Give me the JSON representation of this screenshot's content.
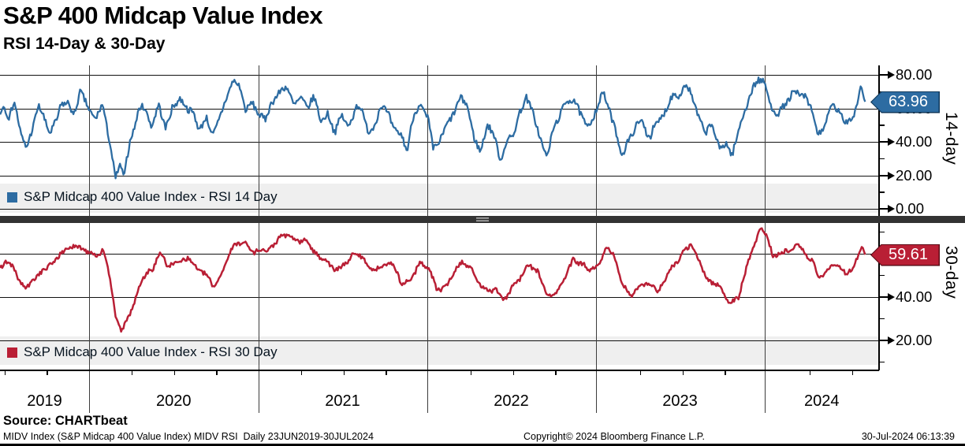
{
  "header": {
    "title": "S&P 400 Midcap Value Index",
    "subtitle": "RSI 14-Day & 30-Day"
  },
  "footer": {
    "source": "Source: CHARTbeat",
    "description": "MIDV Index (S&P Midcap 400 Value Index) MIDV RSI  Daily 23JUN2019-30JUL2024",
    "copyright": "Copyright© 2024 Bloomberg Finance L.P.",
    "timestamp": "30-Jul-2024 06:13:39"
  },
  "colors": {
    "rsi14": "#2d6ca2",
    "rsi30": "#b91f35",
    "legend_bg": "#efefef",
    "divider": "#333333",
    "grid": "#111111"
  },
  "xaxis": {
    "year_labels": [
      "2019",
      "2020",
      "2021",
      "2022",
      "2023",
      "2024"
    ],
    "quarter_ticks": true
  },
  "yaxis": {
    "panel14": {
      "axis_label": "14-day",
      "major_values": [
        80,
        60,
        40,
        20,
        0
      ],
      "major_labels": [
        "80.00",
        "60.00",
        "40.00",
        "20.00",
        "0.00"
      ],
      "minor_values": [
        70,
        50,
        30,
        10
      ],
      "badge_label": "63.96"
    },
    "panel30": {
      "axis_label": "30-day",
      "major_values": [
        60,
        40,
        20
      ],
      "major_labels": [
        "60.00",
        "40.00",
        "20.00"
      ],
      "minor_values": [
        70,
        50,
        30,
        10
      ],
      "badge_label": "59.61"
    }
  },
  "chart_data": [
    {
      "type": "line",
      "name": "rsi14",
      "title": "S&P Midcap 400 Value Index - RSI 14 Day",
      "color": "#2d6ca2",
      "last_value": 63.96,
      "x_range": [
        "23JUN2019",
        "30JUL2024"
      ],
      "ylim": [
        -2.4,
        85.6
      ],
      "yticks": [
        0,
        20,
        40,
        60,
        80
      ],
      "legend_position": "bottom-left-inside",
      "grid": true,
      "noise": {
        "seed": 7,
        "slow_amp": 4.5,
        "fast_amp": 2.0
      },
      "points": [
        [
          2019.475,
          62
        ],
        [
          2019.5,
          66
        ],
        [
          2019.53,
          55
        ],
        [
          2019.56,
          60
        ],
        [
          2019.6,
          42
        ],
        [
          2019.63,
          36
        ],
        [
          2019.67,
          50
        ],
        [
          2019.7,
          62
        ],
        [
          2019.73,
          57
        ],
        [
          2019.77,
          46
        ],
        [
          2019.81,
          52
        ],
        [
          2019.84,
          62
        ],
        [
          2019.88,
          66
        ],
        [
          2019.91,
          58
        ],
        [
          2019.95,
          68
        ],
        [
          2020.0,
          60
        ],
        [
          2020.04,
          56
        ],
        [
          2020.08,
          64
        ],
        [
          2020.12,
          42
        ],
        [
          2020.155,
          18
        ],
        [
          2020.18,
          28
        ],
        [
          2020.21,
          17
        ],
        [
          2020.25,
          45
        ],
        [
          2020.29,
          56
        ],
        [
          2020.33,
          62
        ],
        [
          2020.37,
          52
        ],
        [
          2020.41,
          66
        ],
        [
          2020.45,
          50
        ],
        [
          2020.49,
          60
        ],
        [
          2020.53,
          63
        ],
        [
          2020.57,
          65
        ],
        [
          2020.61,
          55
        ],
        [
          2020.65,
          46
        ],
        [
          2020.69,
          54
        ],
        [
          2020.73,
          42
        ],
        [
          2020.77,
          50
        ],
        [
          2020.81,
          65
        ],
        [
          2020.85,
          73
        ],
        [
          2020.89,
          70
        ],
        [
          2020.92,
          62
        ],
        [
          2020.96,
          67
        ],
        [
          2021.0,
          58
        ],
        [
          2021.04,
          54
        ],
        [
          2021.08,
          68
        ],
        [
          2021.13,
          74
        ],
        [
          2021.17,
          70
        ],
        [
          2021.21,
          63
        ],
        [
          2021.25,
          67
        ],
        [
          2021.29,
          60
        ],
        [
          2021.33,
          63
        ],
        [
          2021.37,
          50
        ],
        [
          2021.41,
          56
        ],
        [
          2021.45,
          47
        ],
        [
          2021.49,
          58
        ],
        [
          2021.53,
          52
        ],
        [
          2021.57,
          62
        ],
        [
          2021.61,
          56
        ],
        [
          2021.65,
          48
        ],
        [
          2021.69,
          53
        ],
        [
          2021.73,
          62
        ],
        [
          2021.77,
          58
        ],
        [
          2021.81,
          48
        ],
        [
          2021.85,
          40
        ],
        [
          2021.875,
          30
        ],
        [
          2021.91,
          54
        ],
        [
          2021.95,
          60
        ],
        [
          2022.0,
          52
        ],
        [
          2022.03,
          32
        ],
        [
          2022.07,
          44
        ],
        [
          2022.11,
          50
        ],
        [
          2022.15,
          55
        ],
        [
          2022.19,
          63
        ],
        [
          2022.23,
          58
        ],
        [
          2022.27,
          40
        ],
        [
          2022.31,
          33
        ],
        [
          2022.35,
          46
        ],
        [
          2022.39,
          40
        ],
        [
          2022.43,
          28
        ],
        [
          2022.47,
          40
        ],
        [
          2022.51,
          50
        ],
        [
          2022.55,
          60
        ],
        [
          2022.58,
          68
        ],
        [
          2022.62,
          55
        ],
        [
          2022.66,
          42
        ],
        [
          2022.7,
          28
        ],
        [
          2022.74,
          44
        ],
        [
          2022.78,
          56
        ],
        [
          2022.82,
          62
        ],
        [
          2022.86,
          66
        ],
        [
          2022.9,
          55
        ],
        [
          2022.94,
          46
        ],
        [
          2022.98,
          56
        ],
        [
          2023.03,
          72
        ],
        [
          2023.07,
          62
        ],
        [
          2023.11,
          50
        ],
        [
          2023.15,
          32
        ],
        [
          2023.19,
          38
        ],
        [
          2023.23,
          48
        ],
        [
          2023.27,
          54
        ],
        [
          2023.31,
          44
        ],
        [
          2023.35,
          50
        ],
        [
          2023.39,
          55
        ],
        [
          2023.43,
          62
        ],
        [
          2023.47,
          68
        ],
        [
          2023.51,
          71
        ],
        [
          2023.55,
          67
        ],
        [
          2023.59,
          54
        ],
        [
          2023.63,
          44
        ],
        [
          2023.67,
          48
        ],
        [
          2023.71,
          40
        ],
        [
          2023.75,
          36
        ],
        [
          2023.79,
          31
        ],
        [
          2023.83,
          45
        ],
        [
          2023.87,
          62
        ],
        [
          2023.91,
          72
        ],
        [
          2023.95,
          80
        ],
        [
          2023.985,
          74
        ],
        [
          2024.02,
          58
        ],
        [
          2024.06,
          54
        ],
        [
          2024.1,
          60
        ],
        [
          2024.14,
          64
        ],
        [
          2024.18,
          67
        ],
        [
          2024.22,
          66
        ],
        [
          2024.26,
          56
        ],
        [
          2024.3,
          43
        ],
        [
          2024.34,
          52
        ],
        [
          2024.38,
          62
        ],
        [
          2024.42,
          56
        ],
        [
          2024.46,
          48
        ],
        [
          2024.5,
          56
        ],
        [
          2024.53,
          63
        ],
        [
          2024.555,
          74
        ],
        [
          2024.57,
          66
        ],
        [
          2024.578,
          63.96
        ]
      ]
    },
    {
      "type": "line",
      "name": "rsi30",
      "title": "S&P Midcap 400 Value Index - RSI 30 Day",
      "color": "#b91f35",
      "last_value": 59.61,
      "x_range": [
        "23JUN2019",
        "30JUL2024"
      ],
      "ylim": [
        6.5,
        75.5
      ],
      "yticks": [
        20,
        40,
        60
      ],
      "legend_position": "bottom-left-inside",
      "grid": true,
      "noise": {
        "seed": 13,
        "slow_amp": 2.2,
        "fast_amp": 1.0
      },
      "points": [
        [
          2019.475,
          53
        ],
        [
          2019.51,
          57
        ],
        [
          2019.55,
          56
        ],
        [
          2019.59,
          49
        ],
        [
          2019.63,
          46
        ],
        [
          2019.67,
          50
        ],
        [
          2019.71,
          53
        ],
        [
          2019.75,
          54
        ],
        [
          2019.79,
          56
        ],
        [
          2019.83,
          58
        ],
        [
          2019.87,
          62
        ],
        [
          2019.91,
          62
        ],
        [
          2019.95,
          64
        ],
        [
          2020.0,
          62
        ],
        [
          2020.04,
          59
        ],
        [
          2020.08,
          62
        ],
        [
          2020.12,
          50
        ],
        [
          2020.16,
          30
        ],
        [
          2020.19,
          26
        ],
        [
          2020.22,
          28
        ],
        [
          2020.26,
          36
        ],
        [
          2020.3,
          45
        ],
        [
          2020.34,
          52
        ],
        [
          2020.38,
          55
        ],
        [
          2020.42,
          60
        ],
        [
          2020.46,
          55
        ],
        [
          2020.5,
          57
        ],
        [
          2020.54,
          58
        ],
        [
          2020.58,
          60
        ],
        [
          2020.62,
          57
        ],
        [
          2020.66,
          52
        ],
        [
          2020.7,
          48
        ],
        [
          2020.74,
          45
        ],
        [
          2020.78,
          50
        ],
        [
          2020.82,
          60
        ],
        [
          2020.86,
          65
        ],
        [
          2020.9,
          66
        ],
        [
          2020.94,
          63
        ],
        [
          2021.0,
          62
        ],
        [
          2021.05,
          63
        ],
        [
          2021.1,
          66
        ],
        [
          2021.15,
          70
        ],
        [
          2021.2,
          69
        ],
        [
          2021.25,
          66
        ],
        [
          2021.3,
          64
        ],
        [
          2021.35,
          61
        ],
        [
          2021.4,
          56
        ],
        [
          2021.45,
          54
        ],
        [
          2021.5,
          56
        ],
        [
          2021.55,
          58
        ],
        [
          2021.6,
          57
        ],
        [
          2021.65,
          54
        ],
        [
          2021.7,
          54
        ],
        [
          2021.75,
          57
        ],
        [
          2021.8,
          54
        ],
        [
          2021.85,
          47
        ],
        [
          2021.9,
          50
        ],
        [
          2021.95,
          55
        ],
        [
          2022.0,
          52
        ],
        [
          2022.05,
          43
        ],
        [
          2022.1,
          45
        ],
        [
          2022.15,
          50
        ],
        [
          2022.2,
          55
        ],
        [
          2022.25,
          53
        ],
        [
          2022.3,
          45
        ],
        [
          2022.35,
          42
        ],
        [
          2022.4,
          43
        ],
        [
          2022.45,
          38
        ],
        [
          2022.5,
          44
        ],
        [
          2022.55,
          50
        ],
        [
          2022.6,
          55
        ],
        [
          2022.65,
          53
        ],
        [
          2022.7,
          40
        ],
        [
          2022.75,
          42
        ],
        [
          2022.8,
          50
        ],
        [
          2022.85,
          56
        ],
        [
          2022.9,
          57
        ],
        [
          2022.95,
          50
        ],
        [
          2023.0,
          54
        ],
        [
          2023.05,
          61
        ],
        [
          2023.1,
          58
        ],
        [
          2023.15,
          46
        ],
        [
          2023.2,
          42
        ],
        [
          2023.25,
          46
        ],
        [
          2023.3,
          47
        ],
        [
          2023.35,
          44
        ],
        [
          2023.4,
          48
        ],
        [
          2023.45,
          54
        ],
        [
          2023.5,
          60
        ],
        [
          2023.55,
          62
        ],
        [
          2023.6,
          56
        ],
        [
          2023.65,
          50
        ],
        [
          2023.7,
          47
        ],
        [
          2023.75,
          42
        ],
        [
          2023.79,
          36
        ],
        [
          2023.83,
          39
        ],
        [
          2023.87,
          50
        ],
        [
          2023.91,
          60
        ],
        [
          2023.96,
          70
        ],
        [
          2024.0,
          67
        ],
        [
          2024.04,
          60
        ],
        [
          2024.08,
          58
        ],
        [
          2024.12,
          61
        ],
        [
          2024.17,
          66
        ],
        [
          2024.22,
          63
        ],
        [
          2024.27,
          55
        ],
        [
          2024.31,
          50
        ],
        [
          2024.35,
          53
        ],
        [
          2024.39,
          56
        ],
        [
          2024.43,
          55
        ],
        [
          2024.47,
          52
        ],
        [
          2024.51,
          54
        ],
        [
          2024.54,
          58
        ],
        [
          2024.56,
          63
        ],
        [
          2024.578,
          59.61
        ]
      ]
    }
  ]
}
